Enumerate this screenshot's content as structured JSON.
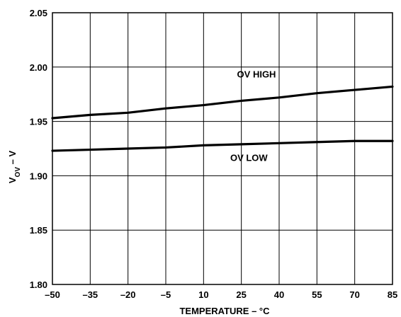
{
  "chart_data": {
    "type": "line",
    "title": "",
    "xlabel": "TEMPERATURE – °C",
    "ylabel": {
      "main": "V",
      "subscript": "OV",
      "suffix": " – V"
    },
    "xlim": [
      -50,
      85
    ],
    "ylim": [
      1.8,
      2.05
    ],
    "xticks": [
      -50,
      -35,
      -20,
      -5,
      10,
      25,
      40,
      55,
      70,
      85
    ],
    "xtick_labels": [
      "–50",
      "–35",
      "–20",
      "–5",
      "10",
      "25",
      "40",
      "55",
      "70",
      "85"
    ],
    "yticks": [
      1.8,
      1.85,
      1.9,
      1.95,
      2.0,
      2.05
    ],
    "ytick_labels": [
      "1.80",
      "1.85",
      "1.90",
      "1.95",
      "2.00",
      "2.05"
    ],
    "grid": true,
    "series": [
      {
        "name": "OV HIGH",
        "x": [
          -50,
          -35,
          -20,
          -5,
          10,
          25,
          40,
          55,
          70,
          85
        ],
        "y": [
          1.953,
          1.956,
          1.958,
          1.962,
          1.965,
          1.969,
          1.972,
          1.976,
          1.979,
          1.982
        ]
      },
      {
        "name": "OV LOW",
        "x": [
          -50,
          -35,
          -20,
          -5,
          10,
          25,
          40,
          55,
          70,
          85
        ],
        "y": [
          1.923,
          1.924,
          1.925,
          1.926,
          1.928,
          1.929,
          1.93,
          1.931,
          1.932,
          1.932
        ]
      }
    ],
    "annotations": [
      {
        "text": "OV HIGH",
        "x": 31,
        "y": 1.9905
      },
      {
        "text": "OV LOW",
        "x": 28,
        "y": 1.9135
      }
    ]
  }
}
